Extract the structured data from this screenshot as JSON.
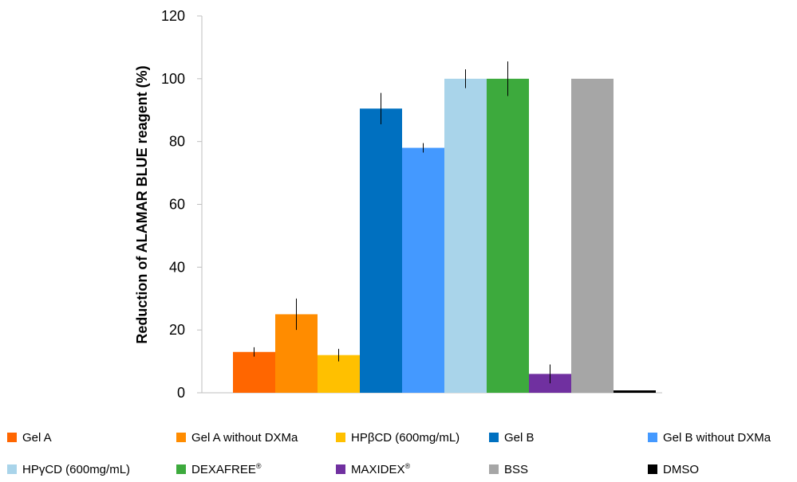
{
  "chart_data": {
    "type": "bar",
    "title": "",
    "xlabel": "",
    "ylabel": "Reduction of ALAMAR BLUE reagent (%)",
    "ylim": [
      0,
      120
    ],
    "yticks": [
      "0",
      "20",
      "40",
      "60",
      "80",
      "100",
      "120"
    ],
    "grid": false,
    "legend_position": "bottom",
    "categories": [
      "Gel A",
      "Gel A without DXMa",
      "HPβCD (600mg/mL)",
      "Gel B",
      "Gel B without DXMa",
      "HPγCD (600mg/mL)",
      "DEXAFREE®",
      "MAXIDEX®",
      "BSS",
      "DMSO"
    ],
    "series": [
      {
        "values": [
          13,
          25,
          12,
          90.5,
          78,
          100,
          100,
          6,
          100,
          0.5
        ],
        "errors": [
          1.5,
          5,
          2,
          5,
          1.5,
          3,
          5.5,
          3,
          0,
          0
        ]
      }
    ],
    "colors": [
      "#FF6600",
      "#FF8C00",
      "#FFC000",
      "#0070C0",
      "#4499FF",
      "#A9D4EA",
      "#3DAA3D",
      "#7030A0",
      "#A6A6A6",
      "#000000"
    ]
  },
  "legend": [
    {
      "label": "Gel A",
      "sup": ""
    },
    {
      "label": "Gel A without DXMa",
      "sup": ""
    },
    {
      "label": "HPβCD (600mg/mL)",
      "sup": ""
    },
    {
      "label": "Gel B",
      "sup": ""
    },
    {
      "label": "Gel B without DXMa",
      "sup": ""
    },
    {
      "label": "HPγCD (600mg/mL)",
      "sup": ""
    },
    {
      "label": "DEXAFREE",
      "sup": "®"
    },
    {
      "label": "MAXIDEX",
      "sup": "®"
    },
    {
      "label": "BSS",
      "sup": ""
    },
    {
      "label": "DMSO",
      "sup": ""
    }
  ]
}
